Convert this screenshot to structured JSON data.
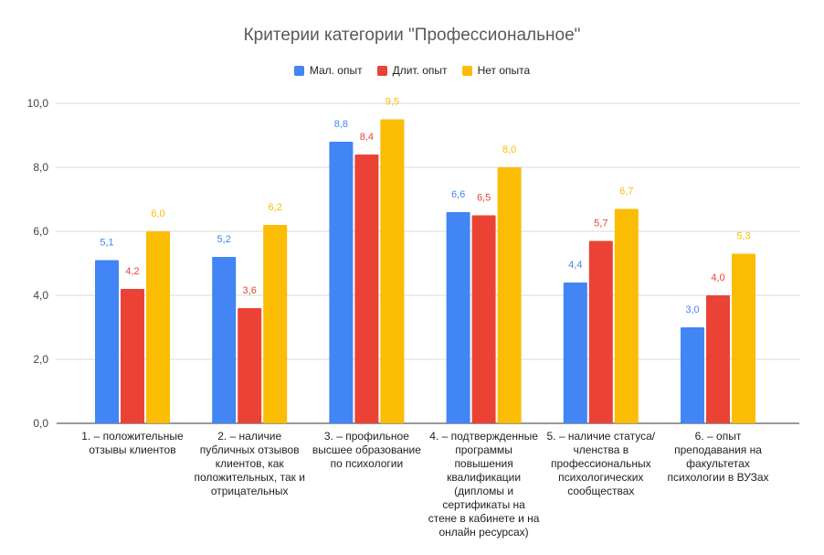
{
  "chart_data": {
    "type": "bar",
    "title": "Критерии категории \"Профессиональное\"",
    "categories": [
      "1. – положительные отзывы клиентов",
      "2. – наличие публичных отзывов клиентов, как положительных, так и отрицательных",
      "3. – профильное высшее образование по психологии",
      "4. – подтвержденные программы повышения квалификации (дипломы и сертификаты на стене в кабинете и на онлайн ресурсах)",
      "5. – наличие статуса/членства в профессиональных психологических сообществах",
      "6. – опыт преподавания на факультетах психологии в ВУЗах"
    ],
    "series": [
      {
        "name": "Мал. опыт",
        "color": "#4285f4",
        "values": [
          5.1,
          5.2,
          8.8,
          6.6,
          4.4,
          3.0
        ]
      },
      {
        "name": "Длит. опыт",
        "color": "#ea4335",
        "values": [
          4.2,
          3.6,
          8.4,
          6.5,
          5.7,
          4.0
        ]
      },
      {
        "name": "Нет опыта",
        "color": "#fbbc04",
        "values": [
          6.0,
          6.2,
          9.5,
          8.0,
          6.7,
          5.3
        ]
      }
    ],
    "ylim": [
      0,
      10
    ],
    "yticks": [
      "0,0",
      "2,0",
      "4,0",
      "6,0",
      "8,0",
      "10,0"
    ],
    "grid": true,
    "legend": "top",
    "xlabel": "",
    "ylabel": ""
  }
}
